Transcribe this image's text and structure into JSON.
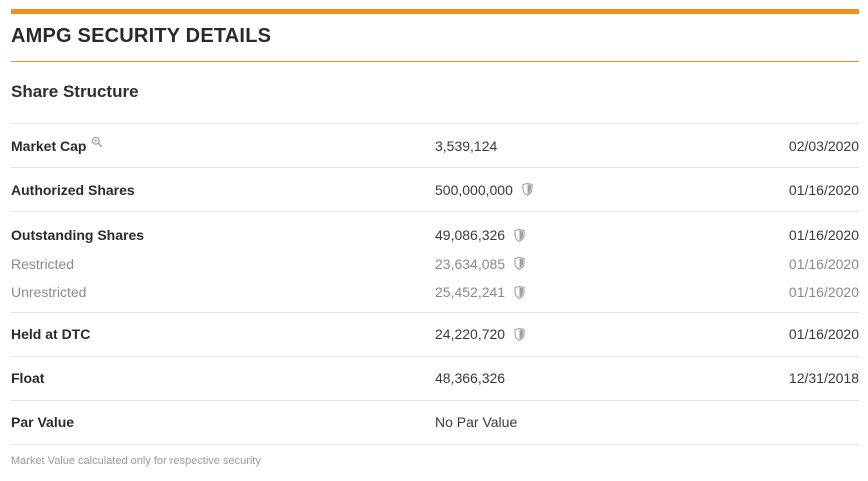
{
  "header": {
    "title": "AMPG SECURITY DETAILS"
  },
  "section": {
    "title": "Share Structure"
  },
  "rows": {
    "market_cap": {
      "label": "Market Cap",
      "value": "3,539,124",
      "date": "02/03/2020",
      "icon": "magnifier-icon"
    },
    "authorized": {
      "label": "Authorized Shares",
      "value": "500,000,000",
      "date": "01/16/2020",
      "icon": "shield-icon"
    },
    "outstanding": {
      "label": "Outstanding Shares",
      "value": "49,086,326",
      "date": "01/16/2020",
      "icon": "shield-icon"
    },
    "restricted": {
      "label": "Restricted",
      "value": "23,634,085",
      "date": "01/16/2020",
      "icon": "shield-icon"
    },
    "unrestricted": {
      "label": "Unrestricted",
      "value": "25,452,241",
      "date": "01/16/2020",
      "icon": "shield-icon"
    },
    "held_dtc": {
      "label": "Held at DTC",
      "value": "24,220,720",
      "date": "01/16/2020",
      "icon": "shield-icon"
    },
    "float": {
      "label": "Float",
      "value": "48,366,326",
      "date": "12/31/2018"
    },
    "par_value": {
      "label": "Par Value",
      "value": "No Par Value",
      "date": ""
    }
  },
  "footnote": "Market Value calculated only for respective security",
  "colors": {
    "accent": "#f0901e",
    "divider": "#e2e2e2",
    "muted_text": "#8a8a8a",
    "icon_gray": "#a0a0a0"
  }
}
